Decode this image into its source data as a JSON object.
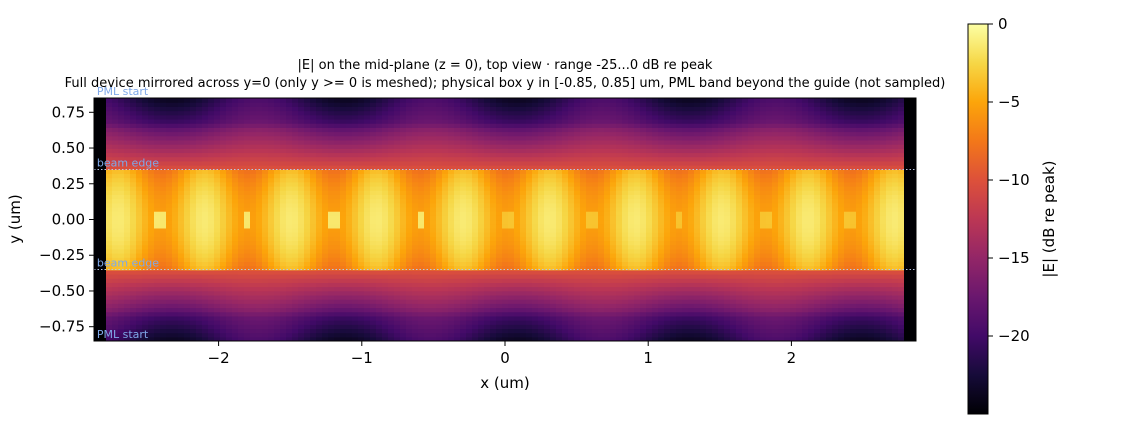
{
  "chart_data": {
    "type": "heatmap",
    "title": "|E| on the mid-plane (z = 0), top view · range -25...0 dB re peak",
    "subtitle": "Full device mirrored across y=0 (only y >= 0 is meshed); physical box y in [-0.85, 0.85] um, PML band beyond the guide (not sampled)",
    "xlabel": "x (um)",
    "ylabel": "y (um)",
    "xlim": [
      -2.87,
      2.87
    ],
    "ylim": [
      -0.85,
      0.85
    ],
    "x_ticks": [
      -2,
      -1,
      0,
      1,
      2
    ],
    "x_tick_labels": [
      "−2",
      "−1",
      "0",
      "1",
      "2"
    ],
    "y_ticks": [
      0.75,
      0.5,
      0.25,
      0.0,
      -0.25,
      -0.5,
      -0.75
    ],
    "y_tick_labels": [
      "0.75",
      "0.50",
      "0.25",
      "0.00",
      "−0.25",
      "−0.50",
      "−0.75"
    ],
    "colorbar": {
      "label": "|E| (dB re peak)",
      "range": [
        -25,
        0
      ],
      "ticks": [
        0,
        -5,
        -10,
        -15,
        -20
      ],
      "tick_labels": [
        "0",
        "−5",
        "−10",
        "−15",
        "−20"
      ],
      "colormap": "inferno"
    },
    "annotations": [
      {
        "text": "PML start",
        "x": -2.85,
        "y": 0.85
      },
      {
        "text": "beam edge",
        "x": -2.85,
        "y": 0.35
      },
      {
        "text": "beam edge",
        "x": -2.85,
        "y": -0.35
      },
      {
        "text": "PML start",
        "x": -2.85,
        "y": -0.85
      }
    ],
    "reference_lines": [
      {
        "axis": "y",
        "value": 0.35,
        "style": "dotted",
        "label": "beam edge"
      },
      {
        "axis": "y",
        "value": -0.35,
        "style": "dotted",
        "label": "beam edge"
      }
    ],
    "field_description": {
      "pml_band_x": [
        2.8,
        2.87
      ],
      "core_half_width": 0.35,
      "period_lobes_x": [
        -2.7,
        -2.1,
        -1.5,
        -0.85,
        -0.2,
        0.35,
        0.95,
        1.55,
        2.15,
        2.72
      ],
      "core_peak_db": 0,
      "cladding_db": -20,
      "pml_db": -25
    }
  }
}
